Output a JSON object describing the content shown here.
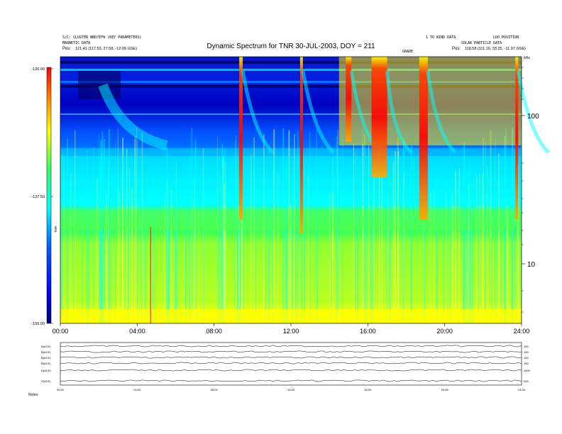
{
  "header": {
    "title": "Dynamic Spectrum for TNR 30-JUL-2003, DOY = 211",
    "left_line1": "S/C: CLUSTER WBD/EFW (KEY PARAMETERS)",
    "left_line2": "MAGNETIC DATA",
    "left_pos_label": "Pos:",
    "left_pos_value": "121.41 (117.53, 27.58, -12.09 GSE)",
    "right_line1": "1 TO WIND DATA",
    "right_line1b": "LDO POSITION",
    "right_line2": "SOLAR PARTICLE DATA",
    "right_pos_label": "Pos:",
    "right_pos_value": "118.58 (111.16, 33.25, -11.97 GSE)",
    "marker_label": "GRADE",
    "khz_label": "kHz"
  },
  "colorbar": {
    "ticks": [
      "-120.00",
      "-137.50",
      "-155.00"
    ],
    "label": "TNR"
  },
  "chart_data": {
    "type": "heatmap",
    "title": "Dynamic Spectrum for TNR 30-JUL-2003, DOY = 211",
    "x_ticks": [
      "00:00",
      "04:00",
      "08:00",
      "12:00",
      "16:00",
      "20:00",
      "24:00"
    ],
    "y_ticks": [
      "100",
      "10"
    ],
    "y_scale": "log",
    "zlim": [
      -155.0,
      -120.0
    ],
    "colormap": [
      "#00007a",
      "#0000ff",
      "#0060ff",
      "#00ffff",
      "#33ff66",
      "#ffff00",
      "#ff8800",
      "#ff0000"
    ],
    "bursts_hours": [
      9.4,
      12.55,
      15.0,
      16.6,
      18.9,
      23.75
    ],
    "bottom_panel": {
      "row_labels": [
        "B(ACE)",
        "B(ACE)",
        "B(ACE)",
        "B(ACE)",
        "N(ACE)",
        "V(ACE)"
      ],
      "x_ticks": [
        "00:00",
        "04:00",
        "08:00",
        "12:00",
        "16:00",
        "20:00",
        "24:00"
      ],
      "right_ticks": [
        "100",
        "100",
        "100",
        "100",
        "1000",
        "100"
      ],
      "footer_label": "Notes:"
    }
  }
}
